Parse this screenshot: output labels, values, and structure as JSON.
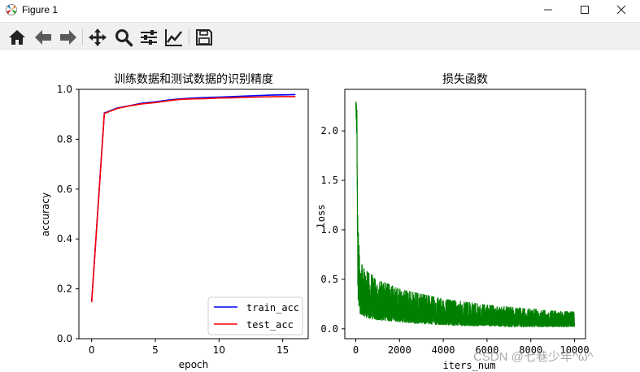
{
  "window": {
    "title": "Figure 1"
  },
  "toolbar": {
    "buttons": [
      {
        "name": "home",
        "icon": "home-icon"
      },
      {
        "name": "back",
        "icon": "arrow-left-icon"
      },
      {
        "name": "forward",
        "icon": "arrow-right-icon"
      },
      {
        "name": "pan",
        "icon": "move-icon"
      },
      {
        "name": "zoom",
        "icon": "magnifier-icon"
      },
      {
        "name": "configure-subplots",
        "icon": "sliders-icon"
      },
      {
        "name": "edit-axis",
        "icon": "line-chart-icon"
      },
      {
        "name": "save",
        "icon": "floppy-disk-icon"
      }
    ]
  },
  "chart_data": [
    {
      "type": "line",
      "title": "训练数据和测试数据的识别精度",
      "xlabel": "epoch",
      "ylabel": "accuracy",
      "xlim": [
        -1,
        17
      ],
      "ylim": [
        0.0,
        1.0
      ],
      "xticks": [
        0,
        5,
        10,
        15
      ],
      "yticks": [
        0.0,
        0.2,
        0.4,
        0.6,
        0.8,
        1.0
      ],
      "ytick_labels": [
        "0.0",
        "0.2",
        "0.4",
        "0.6",
        "0.8",
        "1.0"
      ],
      "x": [
        0,
        1,
        2,
        3,
        4,
        5,
        6,
        7,
        8,
        9,
        10,
        11,
        12,
        13,
        14,
        15,
        16
      ],
      "series": [
        {
          "name": "train_acc",
          "color": "#0000ff",
          "values": [
            0.147,
            0.905,
            0.925,
            0.935,
            0.945,
            0.95,
            0.957,
            0.962,
            0.965,
            0.967,
            0.969,
            0.971,
            0.973,
            0.975,
            0.977,
            0.978,
            0.979
          ]
        },
        {
          "name": "test_acc",
          "color": "#ff0000",
          "values": [
            0.146,
            0.903,
            0.923,
            0.934,
            0.942,
            0.947,
            0.954,
            0.96,
            0.962,
            0.963,
            0.965,
            0.966,
            0.968,
            0.969,
            0.97,
            0.971,
            0.971
          ]
        }
      ],
      "legend": "lower-right"
    },
    {
      "type": "line",
      "title": "损失函数",
      "xlabel": "iters_num",
      "ylabel": "loss",
      "xlim": [
        -500,
        10500
      ],
      "ylim": [
        -0.1,
        2.42
      ],
      "xticks": [
        0,
        2000,
        4000,
        6000,
        8000,
        10000
      ],
      "yticks": [
        0.0,
        0.5,
        1.0,
        1.5,
        2.0
      ],
      "ytick_labels": [
        "0.0",
        "0.5",
        "1.0",
        "1.5",
        "2.0"
      ],
      "color": "#008000",
      "n_points": 10000,
      "envelope": {
        "iter": [
          0,
          50,
          100,
          200,
          400,
          700,
          1000,
          2000,
          3000,
          4000,
          5000,
          6000,
          7000,
          8000,
          9000,
          10000
        ],
        "upper": [
          2.3,
          2.25,
          1.2,
          0.68,
          0.6,
          0.55,
          0.5,
          0.4,
          0.35,
          0.3,
          0.27,
          0.24,
          0.22,
          0.2,
          0.18,
          0.17
        ],
        "lower": [
          2.25,
          1.9,
          0.3,
          0.15,
          0.12,
          0.1,
          0.09,
          0.07,
          0.05,
          0.04,
          0.03,
          0.03,
          0.02,
          0.02,
          0.02,
          0.02
        ]
      }
    }
  ],
  "watermark": "CSDN @七巷少年^ω^"
}
